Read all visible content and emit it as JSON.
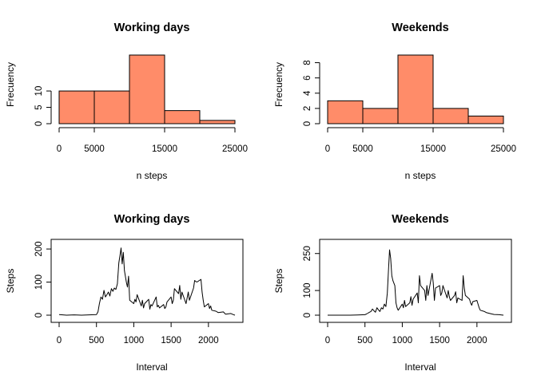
{
  "chart_data": [
    {
      "type": "bar",
      "subtype": "histogram",
      "title": "Working days",
      "xlabel": "n steps",
      "ylabel": "Frecuency",
      "bins": [
        [
          0,
          5000
        ],
        [
          5000,
          10000
        ],
        [
          10000,
          15000
        ],
        [
          15000,
          20000
        ],
        [
          20000,
          25000
        ]
      ],
      "values": [
        10,
        10,
        21,
        4,
        1
      ],
      "xticks": [
        0,
        5000,
        15000,
        25000
      ],
      "yticks": [
        0,
        5,
        10
      ],
      "xlim": [
        0,
        25000
      ],
      "ylim": [
        0,
        21
      ],
      "color": "#FF8C69"
    },
    {
      "type": "bar",
      "subtype": "histogram",
      "title": "Weekends",
      "xlabel": "n steps",
      "ylabel": "Frecuency",
      "bins": [
        [
          0,
          5000
        ],
        [
          5000,
          10000
        ],
        [
          10000,
          15000
        ],
        [
          15000,
          20000
        ],
        [
          20000,
          25000
        ]
      ],
      "values": [
        3,
        2,
        9,
        2,
        1
      ],
      "xticks": [
        0,
        5000,
        15000,
        25000
      ],
      "yticks": [
        0,
        2,
        4,
        6,
        8
      ],
      "xlim": [
        0,
        25000
      ],
      "ylim": [
        0,
        9
      ],
      "color": "#FF8C69"
    },
    {
      "type": "line",
      "title": "Working days",
      "xlabel": "Interval",
      "ylabel": "Steps",
      "xticks": [
        0,
        500,
        1000,
        1500,
        2000
      ],
      "yticks": [
        0,
        100,
        200
      ],
      "xlim": [
        0,
        2355
      ],
      "ylim": [
        0,
        205
      ],
      "color": "#000000",
      "x": [
        0,
        100,
        200,
        300,
        400,
        500,
        520,
        540,
        560,
        580,
        600,
        620,
        640,
        660,
        680,
        700,
        720,
        740,
        760,
        780,
        800,
        815,
        830,
        845,
        860,
        875,
        900,
        915,
        930,
        945,
        1000,
        1015,
        1030,
        1045,
        1100,
        1115,
        1130,
        1145,
        1200,
        1215,
        1230,
        1245,
        1300,
        1315,
        1330,
        1345,
        1400,
        1415,
        1430,
        1445,
        1500,
        1515,
        1530,
        1545,
        1600,
        1615,
        1630,
        1645,
        1700,
        1715,
        1730,
        1745,
        1800,
        1815,
        1830,
        1845,
        1900,
        1915,
        1930,
        1945,
        2000,
        2015,
        2030,
        2045,
        2100,
        2130,
        2200,
        2230,
        2300,
        2330,
        2355
      ],
      "y": [
        2,
        0,
        1,
        0,
        1,
        2,
        10,
        35,
        55,
        48,
        75,
        55,
        62,
        70,
        58,
        80,
        72,
        82,
        78,
        95,
        158,
        180,
        203,
        155,
        190,
        135,
        100,
        85,
        118,
        45,
        35,
        48,
        40,
        62,
        28,
        45,
        22,
        35,
        48,
        18,
        32,
        28,
        55,
        25,
        30,
        22,
        32,
        20,
        25,
        40,
        55,
        35,
        45,
        80,
        65,
        90,
        48,
        70,
        35,
        52,
        70,
        45,
        82,
        105,
        102,
        100,
        108,
        70,
        45,
        25,
        35,
        20,
        28,
        15,
        12,
        8,
        10,
        3,
        5,
        2,
        0
      ]
    },
    {
      "type": "line",
      "title": "Weekends",
      "xlabel": "Interval",
      "ylabel": "Steps",
      "xticks": [
        0,
        500,
        1000,
        1500,
        2000
      ],
      "yticks": [
        0,
        100,
        250
      ],
      "xlim": [
        0,
        2355
      ],
      "ylim": [
        0,
        275
      ],
      "color": "#000000",
      "x": [
        0,
        100,
        200,
        300,
        400,
        500,
        520,
        540,
        560,
        580,
        600,
        620,
        640,
        660,
        680,
        700,
        720,
        740,
        760,
        780,
        800,
        815,
        830,
        845,
        860,
        875,
        900,
        915,
        930,
        945,
        1000,
        1015,
        1030,
        1045,
        1100,
        1115,
        1130,
        1145,
        1200,
        1215,
        1230,
        1245,
        1300,
        1315,
        1330,
        1345,
        1400,
        1415,
        1430,
        1445,
        1500,
        1515,
        1530,
        1545,
        1600,
        1615,
        1630,
        1645,
        1700,
        1715,
        1730,
        1745,
        1800,
        1815,
        1830,
        1845,
        1900,
        1915,
        1930,
        1945,
        2000,
        2015,
        2030,
        2045,
        2100,
        2130,
        2200,
        2230,
        2300,
        2330,
        2355
      ],
      "y": [
        0,
        0,
        0,
        0,
        1,
        2,
        5,
        8,
        12,
        15,
        25,
        18,
        12,
        30,
        22,
        15,
        30,
        25,
        45,
        35,
        90,
        180,
        265,
        230,
        160,
        140,
        120,
        50,
        30,
        20,
        45,
        30,
        60,
        35,
        50,
        75,
        40,
        65,
        90,
        50,
        160,
        120,
        100,
        60,
        120,
        80,
        170,
        130,
        60,
        110,
        120,
        80,
        90,
        120,
        70,
        100,
        75,
        60,
        80,
        95,
        50,
        70,
        60,
        160,
        110,
        80,
        65,
        50,
        40,
        55,
        60,
        45,
        30,
        20,
        15,
        10,
        5,
        3,
        2,
        1,
        0
      ]
    }
  ]
}
